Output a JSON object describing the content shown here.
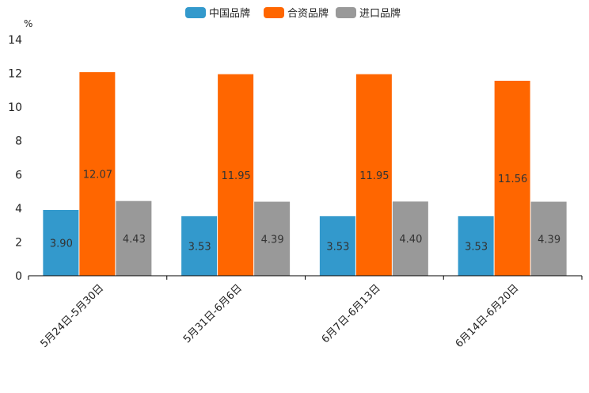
{
  "chart_data": {
    "type": "bar",
    "title": "",
    "xlabel": "",
    "ylabel": "%",
    "ylim": [
      0,
      14
    ],
    "yticks": [
      0,
      2,
      4,
      6,
      8,
      10,
      12,
      14
    ],
    "categories": [
      "5月24日-5月30日",
      "5月31日-6月6日",
      "6月7日-6月13日",
      "6月14日-6月20日"
    ],
    "series": [
      {
        "name": "中国品牌",
        "color": "#3399cc",
        "values": [
          3.9,
          3.53,
          3.53,
          3.53
        ],
        "labels": [
          "3.90",
          "3.53",
          "3.53",
          "3.53"
        ]
      },
      {
        "name": "合资品牌",
        "color": "#ff6600",
        "values": [
          12.07,
          11.95,
          11.95,
          11.56
        ],
        "labels": [
          "12.07",
          "11.95",
          "11.95",
          "11.56"
        ]
      },
      {
        "name": "进口品牌",
        "color": "#999999",
        "values": [
          4.43,
          4.39,
          4.4,
          4.39
        ],
        "labels": [
          "4.43",
          "4.39",
          "4.40",
          "4.39"
        ]
      }
    ],
    "legend_position": "top-center",
    "grid": false
  }
}
